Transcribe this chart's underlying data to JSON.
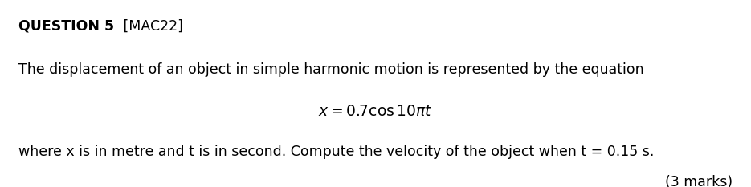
{
  "background_color": "#ffffff",
  "title_bold": "QUESTION 5",
  "title_normal": " [MAC22]",
  "line1": "The displacement of an object in simple harmonic motion is represented by the equation",
  "equation": "$x = 0.7 \\cos 10\\pi t$",
  "line2": "where x is in metre and t is in second. Compute the velocity of the object when t = 0.15 s.",
  "marks": "(3 marks)",
  "font_size_main": 12.5,
  "font_size_title": 12.5,
  "font_size_equation": 13.5,
  "font_size_marks": 12.5,
  "text_color": "#000000",
  "fig_width": 9.35,
  "fig_height": 2.34,
  "dpi": 100
}
